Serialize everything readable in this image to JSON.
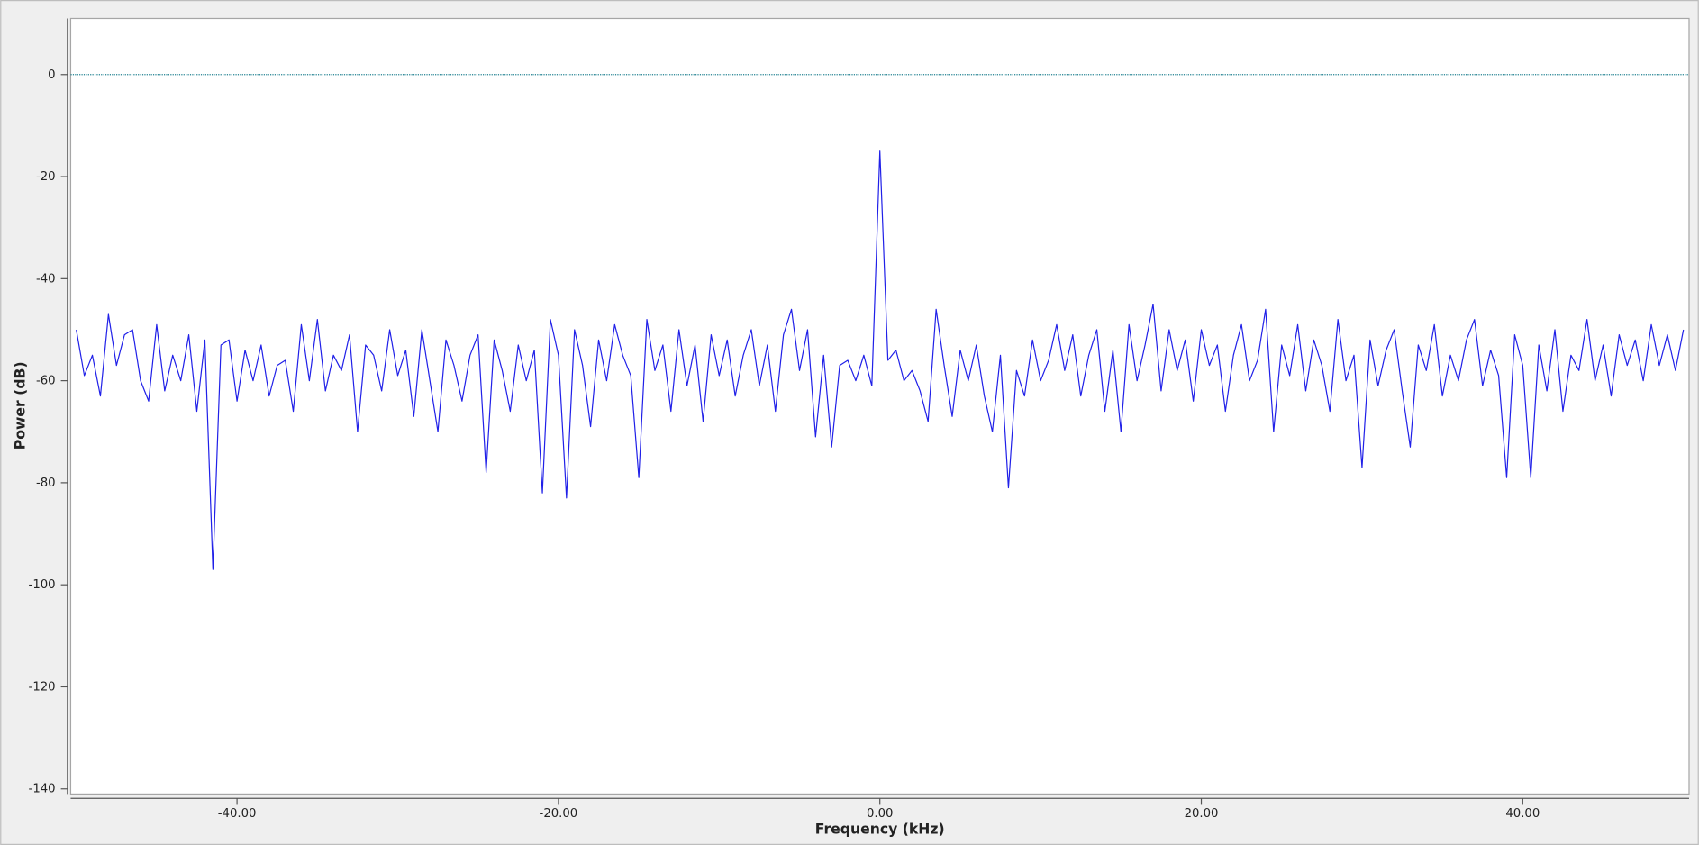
{
  "chart_data": {
    "type": "line",
    "xlabel": "Frequency (kHz)",
    "ylabel": "Power (dB)",
    "xlim": [
      -50.35,
      50.35
    ],
    "ylim": [
      -141,
      11
    ],
    "xticks": [
      {
        "value": -40,
        "label": "-40.00"
      },
      {
        "value": -20,
        "label": "-20.00"
      },
      {
        "value": 0,
        "label": "0.00"
      },
      {
        "value": 20,
        "label": "20.00"
      },
      {
        "value": 40,
        "label": "40.00"
      }
    ],
    "yticks": [
      0,
      -20,
      -40,
      -60,
      -80,
      -100,
      -120,
      -140
    ],
    "reference_line": 0,
    "reference_color": "#1c7f8f",
    "series": [
      {
        "color": "#2020e8",
        "x": [
          -50,
          -49.5,
          -49,
          -48.5,
          -48,
          -47.5,
          -47,
          -46.5,
          -46,
          -45.5,
          -45,
          -44.5,
          -44,
          -43.5,
          -43,
          -42.5,
          -42,
          -41.5,
          -41,
          -40.5,
          -40,
          -39.5,
          -39,
          -38.5,
          -38,
          -37.5,
          -37,
          -36.5,
          -36,
          -35.5,
          -35,
          -34.5,
          -34,
          -33.5,
          -33,
          -32.5,
          -32,
          -31.5,
          -31,
          -30.5,
          -30,
          -29.5,
          -29,
          -28.5,
          -28,
          -27.5,
          -27,
          -26.5,
          -26,
          -25.5,
          -25,
          -24.5,
          -24,
          -23.5,
          -23,
          -22.5,
          -22,
          -21.5,
          -21,
          -20.5,
          -20,
          -19.5,
          -19,
          -18.5,
          -18,
          -17.5,
          -17,
          -16.5,
          -16,
          -15.5,
          -15,
          -14.5,
          -14,
          -13.5,
          -13,
          -12.5,
          -12,
          -11.5,
          -11,
          -10.5,
          -10,
          -9.5,
          -9,
          -8.5,
          -8,
          -7.5,
          -7,
          -6.5,
          -6,
          -5.5,
          -5,
          -4.5,
          -4,
          -3.5,
          -3,
          -2.5,
          -2,
          -1.5,
          -1,
          -0.5,
          0,
          0.5,
          1,
          1.5,
          2,
          2.5,
          3,
          3.5,
          4,
          4.5,
          5,
          5.5,
          6,
          6.5,
          7,
          7.5,
          8,
          8.5,
          9,
          9.5,
          10,
          10.5,
          11,
          11.5,
          12,
          12.5,
          13,
          13.5,
          14,
          14.5,
          15,
          15.5,
          16,
          16.5,
          17,
          17.5,
          18,
          18.5,
          19,
          19.5,
          20,
          20.5,
          21,
          21.5,
          22,
          22.5,
          23,
          23.5,
          24,
          24.5,
          25,
          25.5,
          26,
          26.5,
          27,
          27.5,
          28,
          28.5,
          29,
          29.5,
          30,
          30.5,
          31,
          31.5,
          32,
          32.5,
          33,
          33.5,
          34,
          34.5,
          35,
          35.5,
          36,
          36.5,
          37,
          37.5,
          38,
          38.5,
          39,
          39.5,
          40,
          40.5,
          41,
          41.5,
          42,
          42.5,
          43,
          43.5,
          44,
          44.5,
          45,
          45.5,
          46,
          46.5,
          47,
          47.5,
          48,
          48.5,
          49,
          49.5,
          50
        ],
        "values": [
          -50,
          -59,
          -55,
          -63,
          -47,
          -57,
          -51,
          -50,
          -60,
          -64,
          -49,
          -62,
          -55,
          -60,
          -51,
          -66,
          -52,
          -97,
          -53,
          -52,
          -64,
          -54,
          -60,
          -53,
          -63,
          -57,
          -56,
          -66,
          -49,
          -60,
          -48,
          -62,
          -55,
          -58,
          -51,
          -70,
          -53,
          -55,
          -62,
          -50,
          -59,
          -54,
          -67,
          -50,
          -60,
          -70,
          -52,
          -57,
          -64,
          -55,
          -51,
          -78,
          -52,
          -58,
          -66,
          -53,
          -60,
          -54,
          -82,
          -48,
          -55,
          -83,
          -50,
          -57,
          -69,
          -52,
          -60,
          -49,
          -55,
          -59,
          -79,
          -48,
          -58,
          -53,
          -66,
          -50,
          -61,
          -53,
          -68,
          -51,
          -59,
          -52,
          -63,
          -55,
          -50,
          -61,
          -53,
          -66,
          -51,
          -46,
          -58,
          -50,
          -71,
          -55,
          -73,
          -57,
          -56,
          -60,
          -55,
          -61,
          -15,
          -56,
          -54,
          -60,
          -58,
          -62,
          -68,
          -46,
          -57,
          -67,
          -54,
          -60,
          -53,
          -63,
          -70,
          -55,
          -81,
          -58,
          -63,
          -52,
          -60,
          -56,
          -49,
          -58,
          -51,
          -63,
          -55,
          -50,
          -66,
          -54,
          -70,
          -49,
          -60,
          -53,
          -45,
          -62,
          -50,
          -58,
          -52,
          -64,
          -50,
          -57,
          -53,
          -66,
          -55,
          -49,
          -60,
          -56,
          -46,
          -70,
          -53,
          -59,
          -49,
          -62,
          -52,
          -57,
          -66,
          -48,
          -60,
          -55,
          -77,
          -52,
          -61,
          -54,
          -50,
          -62,
          -73,
          -53,
          -58,
          -49,
          -63,
          -55,
          -60,
          -52,
          -48,
          -61,
          -54,
          -59,
          -79,
          -51,
          -57,
          -79,
          -53,
          -62,
          -50,
          -66,
          -55,
          -58,
          -48,
          -60,
          -53,
          -63,
          -51,
          -57,
          -52,
          -60,
          -49,
          -57,
          -51,
          -58,
          -50
        ]
      }
    ]
  }
}
